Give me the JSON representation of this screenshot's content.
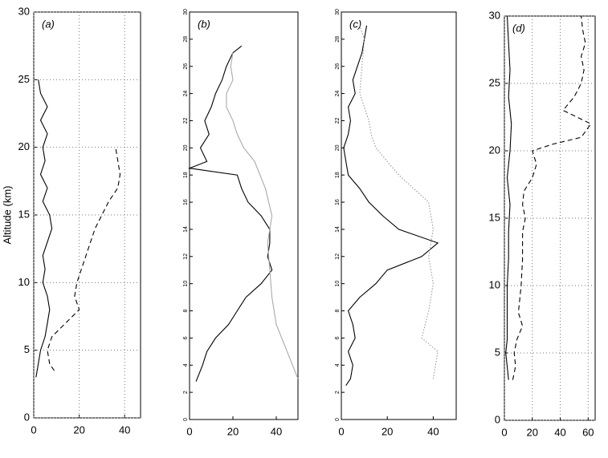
{
  "chart_data": [
    {
      "type": "line",
      "title": "(a)",
      "ylabel": "Altitude (km)",
      "grid": true,
      "tick_size": "normal",
      "xlim": [
        0,
        47
      ],
      "xticks": [
        0,
        20,
        40
      ],
      "ylim": [
        0,
        30
      ],
      "yticks": [
        0,
        5,
        10,
        15,
        20,
        25,
        30
      ],
      "series": [
        {
          "color": "#000",
          "linestyle": "solid",
          "y": [
            3,
            4,
            5,
            6,
            7,
            8,
            9,
            10,
            11,
            12,
            13,
            14,
            15,
            16,
            17,
            18,
            19,
            20,
            21,
            22,
            23,
            24,
            25
          ],
          "x": [
            1,
            2,
            3,
            5,
            6,
            7,
            6,
            4,
            5,
            4,
            6,
            8,
            7,
            4,
            6,
            3,
            5,
            4,
            6,
            3,
            6,
            3,
            2
          ]
        },
        {
          "color": "#000",
          "linestyle": "dashed",
          "y": [
            3.5,
            4,
            5,
            6,
            7,
            8,
            9,
            10,
            11,
            12,
            13,
            14,
            15,
            16,
            17,
            18,
            19,
            20
          ],
          "x": [
            9,
            7,
            6,
            8,
            14,
            20,
            18,
            19,
            21,
            23,
            25,
            27,
            30,
            33,
            37,
            38,
            37,
            36
          ]
        }
      ]
    },
    {
      "type": "line",
      "title": "(b)",
      "grid": false,
      "tick_size": "small",
      "xlim": [
        0,
        50
      ],
      "xticks": [
        0,
        20,
        40
      ],
      "ylim": [
        0,
        30
      ],
      "yticks": [
        0,
        2,
        4,
        6,
        8,
        10,
        12,
        14,
        16,
        18,
        20,
        22,
        24,
        26,
        28,
        30
      ],
      "series": [
        {
          "color": "#000",
          "linestyle": "solid",
          "y": [
            2.8,
            4,
            5,
            6,
            7,
            8,
            9,
            10,
            11,
            12,
            13,
            14,
            15,
            16,
            17,
            18,
            18.5,
            19,
            20,
            21,
            22,
            23,
            24,
            25,
            26,
            27,
            27.5
          ],
          "x": [
            3,
            6,
            8,
            12,
            18,
            22,
            26,
            33,
            38,
            36,
            37,
            37,
            33,
            27,
            24,
            22,
            0,
            8,
            5,
            9,
            7,
            10,
            12,
            15,
            17,
            20,
            24
          ]
        },
        {
          "color": "#aaa",
          "linestyle": "solid",
          "y": [
            3,
            5,
            7,
            9,
            11,
            13,
            15,
            17,
            19,
            20,
            21,
            22,
            23,
            24,
            25,
            26,
            27
          ],
          "x": [
            50,
            45,
            40,
            38,
            37,
            36,
            38,
            35,
            30,
            25,
            22,
            20,
            17,
            17,
            20,
            19,
            20
          ]
        }
      ]
    },
    {
      "type": "line",
      "title": "(c)",
      "grid": false,
      "tick_size": "small",
      "xlim": [
        0,
        50
      ],
      "xticks": [
        0,
        20,
        40
      ],
      "ylim": [
        0,
        30
      ],
      "yticks": [
        0,
        2,
        4,
        6,
        8,
        10,
        12,
        14,
        16,
        18,
        20,
        22,
        24,
        26,
        28,
        30
      ],
      "series": [
        {
          "color": "#000",
          "linestyle": "solid",
          "y": [
            2.5,
            3,
            4,
            5,
            6,
            7,
            8,
            9,
            10,
            11,
            12,
            13,
            14,
            15,
            16,
            17,
            18,
            19,
            20,
            21,
            22,
            23,
            24,
            25,
            26,
            27,
            28,
            29
          ],
          "x": [
            2,
            4,
            5,
            3,
            6,
            5,
            3,
            8,
            15,
            20,
            35,
            42,
            25,
            18,
            12,
            8,
            3,
            2,
            1,
            3,
            4,
            3,
            6,
            5,
            7,
            9,
            10,
            11
          ]
        },
        {
          "color": "#999",
          "linestyle": "dotted",
          "y": [
            3,
            5,
            6,
            8,
            10,
            12,
            14,
            16,
            18,
            19,
            20,
            21,
            22,
            23,
            24,
            26,
            28,
            29
          ],
          "x": [
            40,
            42,
            35,
            38,
            40,
            38,
            40,
            38,
            25,
            20,
            15,
            13,
            12,
            10,
            8,
            9,
            10,
            8
          ]
        }
      ]
    },
    {
      "type": "line",
      "title": "(d)",
      "grid": true,
      "tick_size": "normal",
      "xlim": [
        0,
        65
      ],
      "xticks": [
        0,
        20,
        40,
        60
      ],
      "ylim": [
        0,
        30
      ],
      "yticks": [
        0,
        5,
        10,
        15,
        20,
        25,
        30
      ],
      "series": [
        {
          "color": "#000",
          "linestyle": "solid",
          "y": [
            3,
            4,
            5,
            6,
            8,
            10,
            12,
            14,
            16,
            18,
            20,
            22,
            24,
            26,
            28,
            30
          ],
          "x": [
            3,
            2,
            1,
            2,
            2,
            2,
            3,
            3,
            4,
            2,
            4,
            5,
            3,
            4,
            3,
            2
          ]
        },
        {
          "color": "#000",
          "linestyle": "dashed",
          "y": [
            3,
            4,
            5,
            6,
            7,
            8,
            10,
            12,
            14,
            15,
            16,
            17,
            18,
            19,
            20,
            20.5,
            21,
            22,
            23,
            24,
            25,
            26,
            27,
            28,
            29,
            30
          ],
          "x": [
            6,
            8,
            7,
            9,
            13,
            10,
            12,
            13,
            13,
            15,
            13,
            14,
            20,
            23,
            20,
            35,
            55,
            62,
            42,
            50,
            55,
            57,
            55,
            58,
            56,
            55
          ]
        }
      ]
    }
  ]
}
